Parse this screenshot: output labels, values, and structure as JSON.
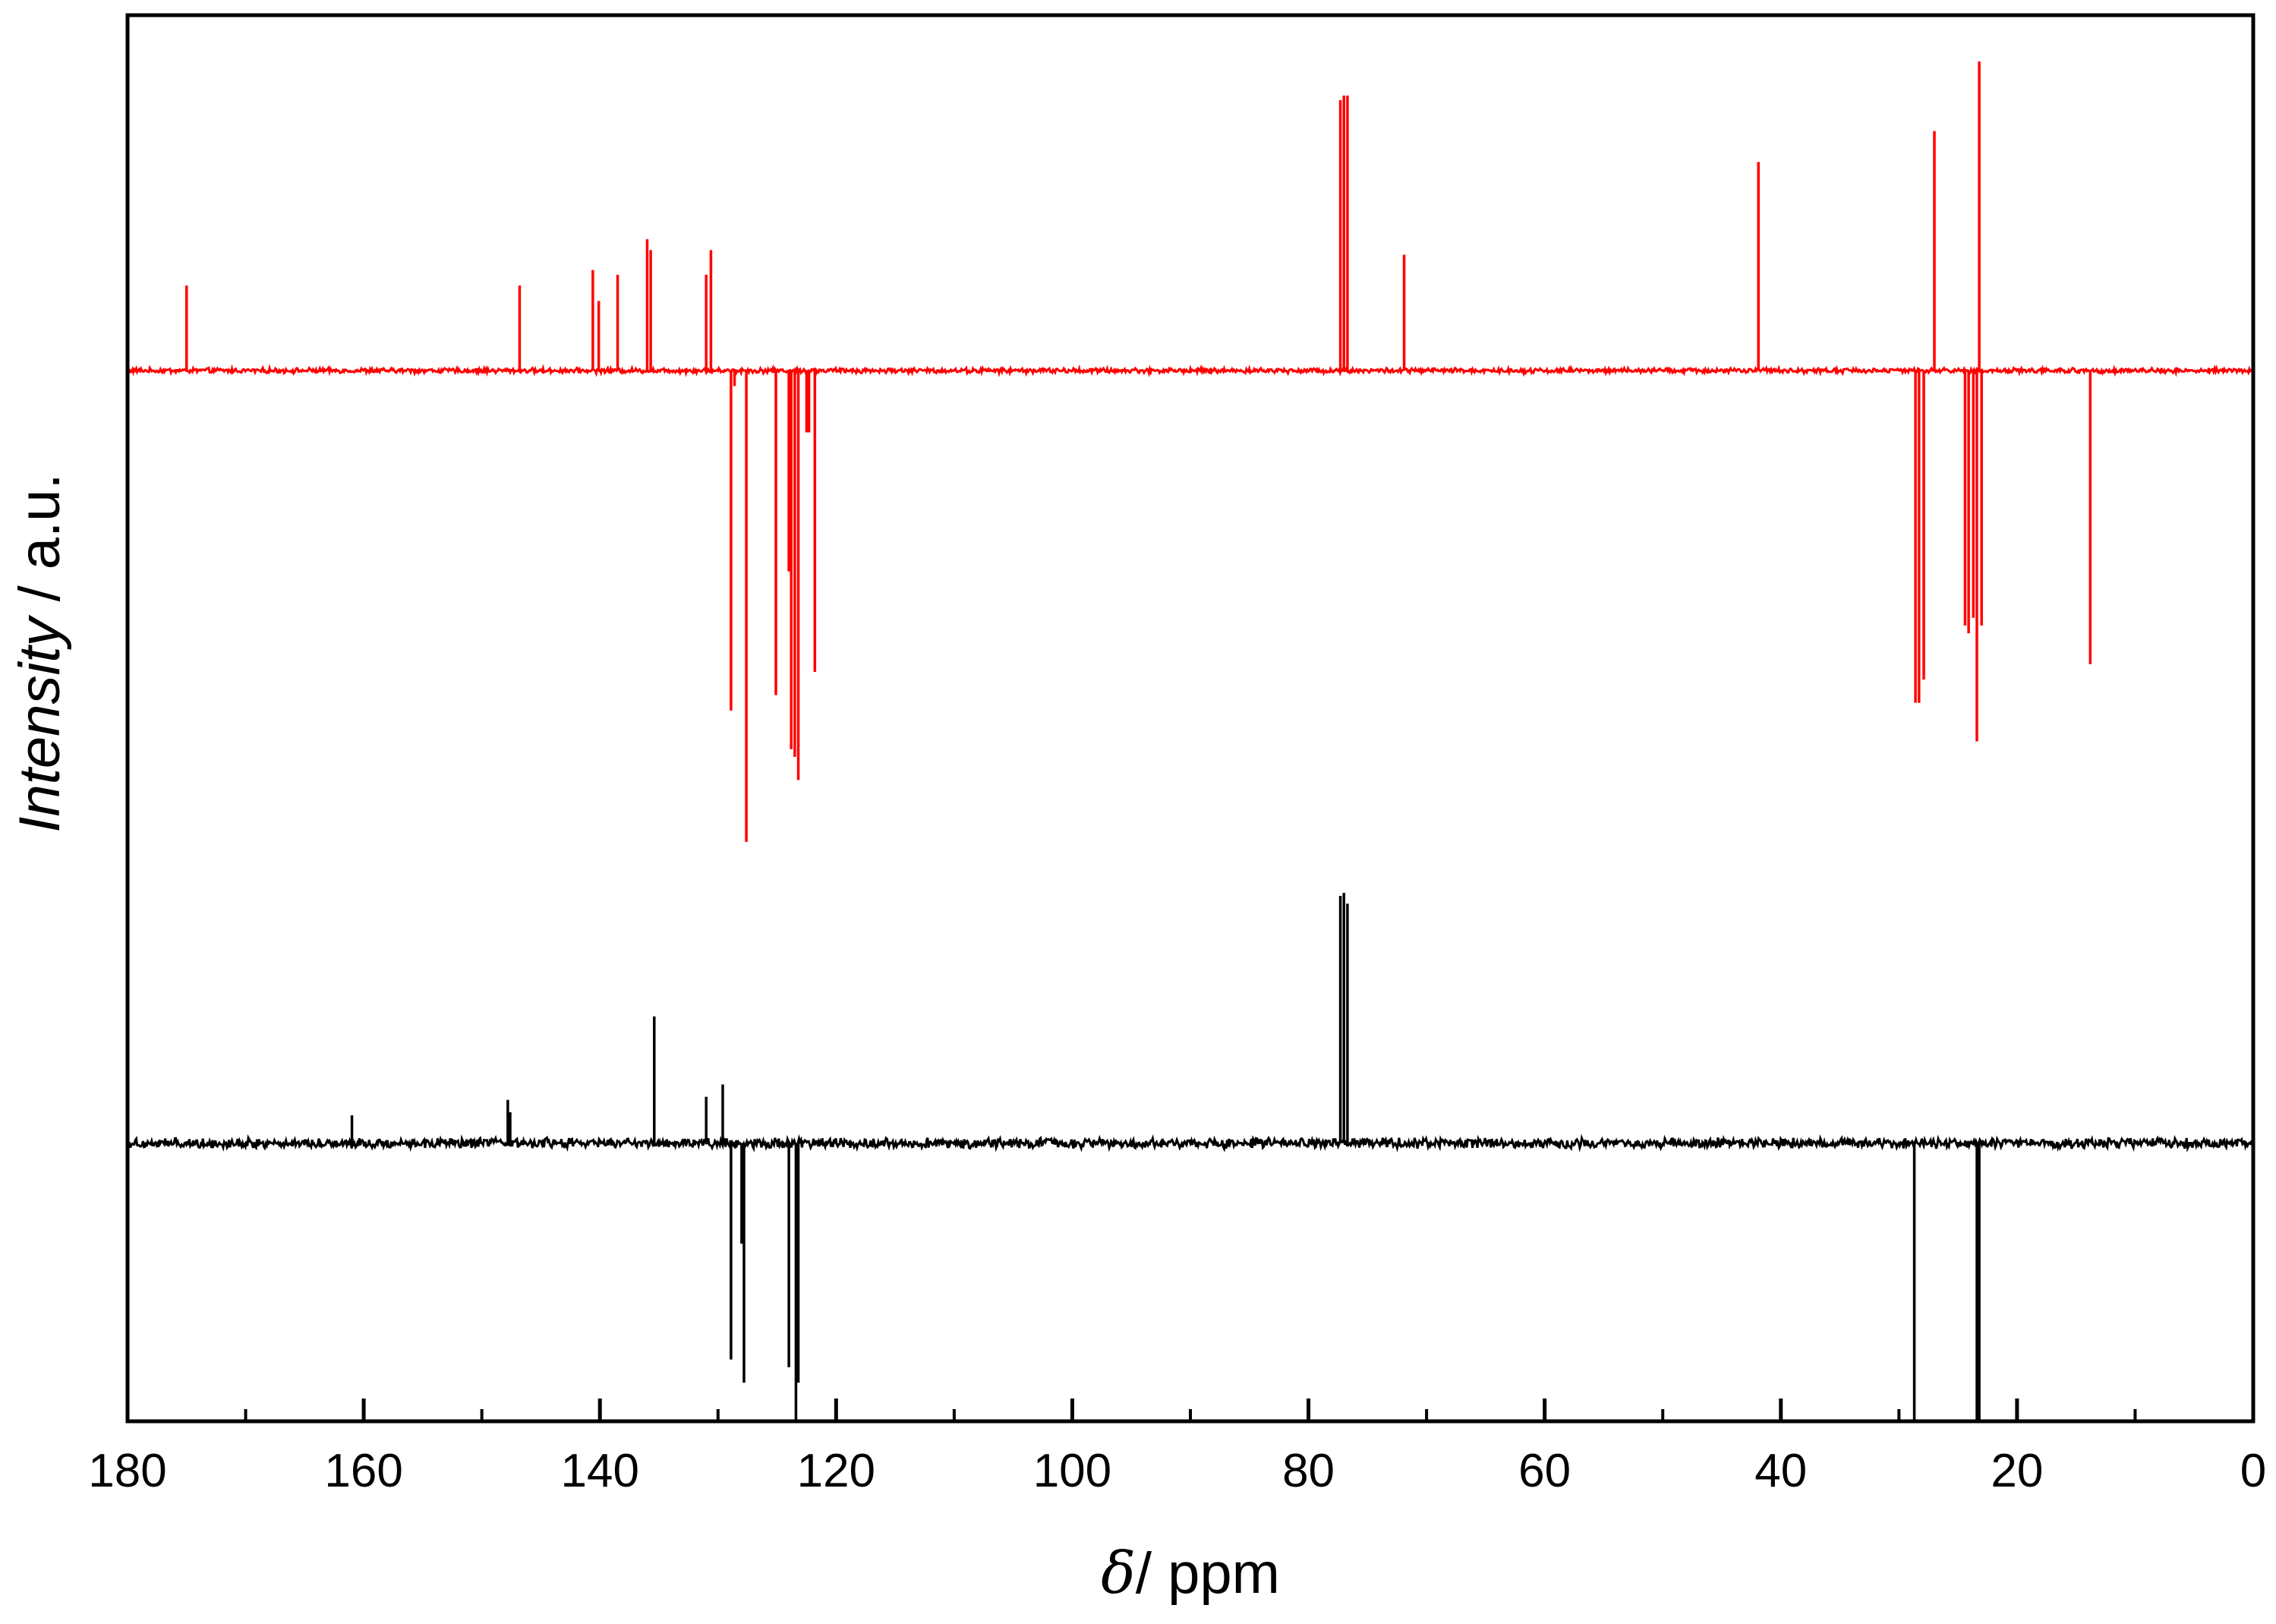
{
  "chart_data": {
    "type": "line",
    "title": "",
    "xlabel_symbol": "δ",
    "xlabel_unit": "/ ppm",
    "ylabel_main": "Intensity",
    "ylabel_unit": " / a.u.",
    "xlim": [
      180,
      0
    ],
    "x_reversed": true,
    "x_major_ticks": [
      180,
      160,
      140,
      120,
      100,
      80,
      60,
      40,
      20,
      0
    ],
    "x_minor_ticks": [
      170,
      150,
      130,
      110,
      90,
      70,
      50,
      30,
      10
    ],
    "x_tick_labels": [
      "180",
      "160",
      "140",
      "120",
      "100",
      "80",
      "60",
      "40",
      "20",
      "0"
    ],
    "y_ticks_shown": false,
    "ylim": [
      -2.5,
      6.6
    ],
    "grid": false,
    "legend": "none",
    "series": [
      {
        "color": "#ff0000",
        "baseline": 4.3,
        "noise": 0.012,
        "peaks": [
          {
            "x": 175.0,
            "h": 0.55
          },
          {
            "x": 146.8,
            "h": 0.55
          },
          {
            "x": 140.6,
            "h": 0.65
          },
          {
            "x": 140.1,
            "h": 0.45
          },
          {
            "x": 138.5,
            "h": 0.62
          },
          {
            "x": 136.0,
            "h": 0.85
          },
          {
            "x": 135.7,
            "h": 0.78
          },
          {
            "x": 131.0,
            "h": 0.62
          },
          {
            "x": 130.6,
            "h": 0.78
          },
          {
            "x": 128.9,
            "h": -2.2
          },
          {
            "x": 128.6,
            "h": -0.1
          },
          {
            "x": 127.6,
            "h": -3.05
          },
          {
            "x": 125.1,
            "h": -2.1
          },
          {
            "x": 124.0,
            "h": -1.3
          },
          {
            "x": 123.8,
            "h": -2.45
          },
          {
            "x": 123.5,
            "h": -2.5
          },
          {
            "x": 123.2,
            "h": -2.65
          },
          {
            "x": 122.5,
            "h": -0.4
          },
          {
            "x": 122.3,
            "h": -0.4
          },
          {
            "x": 121.8,
            "h": -1.95
          },
          {
            "x": 77.3,
            "h": 1.75
          },
          {
            "x": 77.0,
            "h": 1.78
          },
          {
            "x": 76.7,
            "h": 1.78
          },
          {
            "x": 71.9,
            "h": 0.75
          },
          {
            "x": 41.9,
            "h": 1.35
          },
          {
            "x": 28.6,
            "h": -2.15
          },
          {
            "x": 28.3,
            "h": -2.15
          },
          {
            "x": 27.9,
            "h": -2.0
          },
          {
            "x": 27.0,
            "h": 1.55
          },
          {
            "x": 24.4,
            "h": -1.65
          },
          {
            "x": 24.1,
            "h": -1.7
          },
          {
            "x": 23.7,
            "h": -1.6
          },
          {
            "x": 23.4,
            "h": -2.4
          },
          {
            "x": 23.2,
            "h": 2.0
          },
          {
            "x": 23.0,
            "h": -1.65
          },
          {
            "x": 13.8,
            "h": -1.9
          }
        ]
      },
      {
        "color": "#000000",
        "baseline": -0.7,
        "noise": 0.025,
        "peaks": [
          {
            "x": 161.0,
            "h": 0.18
          },
          {
            "x": 147.8,
            "h": 0.28
          },
          {
            "x": 147.6,
            "h": 0.2
          },
          {
            "x": 135.4,
            "h": 0.82
          },
          {
            "x": 131.0,
            "h": 0.3
          },
          {
            "x": 129.6,
            "h": 0.38
          },
          {
            "x": 128.9,
            "h": -1.4
          },
          {
            "x": 128.0,
            "h": -0.65
          },
          {
            "x": 127.8,
            "h": -1.55
          },
          {
            "x": 124.0,
            "h": -1.45
          },
          {
            "x": 123.4,
            "h": -3.25
          },
          {
            "x": 123.2,
            "h": -1.55
          },
          {
            "x": 77.3,
            "h": 1.6
          },
          {
            "x": 77.0,
            "h": 1.62
          },
          {
            "x": 76.7,
            "h": 1.55
          },
          {
            "x": 28.7,
            "h": -2.75
          },
          {
            "x": 23.4,
            "h": -2.55
          },
          {
            "x": 23.2,
            "h": -2.2
          }
        ]
      }
    ]
  }
}
